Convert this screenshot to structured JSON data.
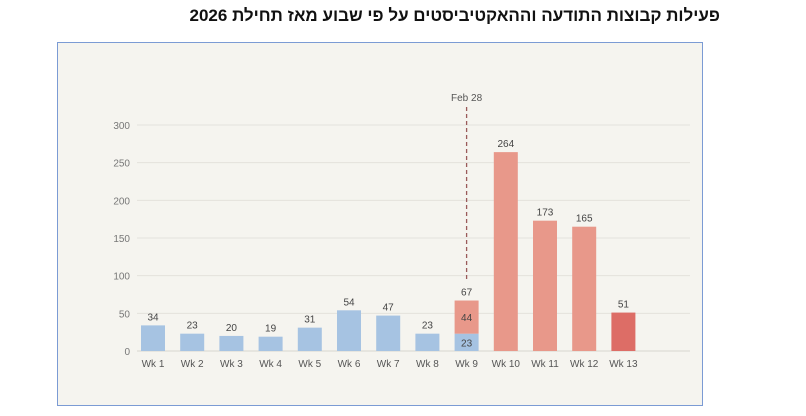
{
  "title": "פעילות קבוצות התודעה וההאקטיביסטים על פי שבוע מאז תחילת 2026",
  "chart_data": {
    "type": "bar",
    "stacked": true,
    "categories": [
      "Wk 1",
      "Wk 2",
      "Wk 3",
      "Wk 4",
      "Wk 5",
      "Wk 6",
      "Wk 7",
      "Wk 8",
      "Wk 9",
      "Wk 10",
      "Wk 11",
      "Wk 12",
      "Wk 13"
    ],
    "series": [
      {
        "values": [
          34,
          23,
          20,
          19,
          31,
          54,
          47,
          23,
          23,
          0,
          0,
          0,
          0
        ],
        "color": "#a6c3e2"
      },
      {
        "values": [
          0,
          0,
          0,
          0,
          0,
          0,
          0,
          0,
          44,
          264,
          173,
          165,
          0
        ],
        "color": "#e8988a"
      },
      {
        "values": [
          0,
          0,
          0,
          0,
          0,
          0,
          0,
          0,
          0,
          0,
          0,
          0,
          51
        ],
        "color": "#dd6d66"
      }
    ],
    "totals": [
      34,
      23,
      20,
      19,
      31,
      54,
      47,
      23,
      67,
      264,
      173,
      165,
      51
    ],
    "ylim": [
      0,
      300
    ],
    "yticks": [
      0,
      50,
      100,
      150,
      200,
      250,
      300
    ],
    "grid": true,
    "annotation": {
      "label": "Feb 28",
      "between": [
        "Wk 9",
        "Wk 9"
      ]
    }
  }
}
